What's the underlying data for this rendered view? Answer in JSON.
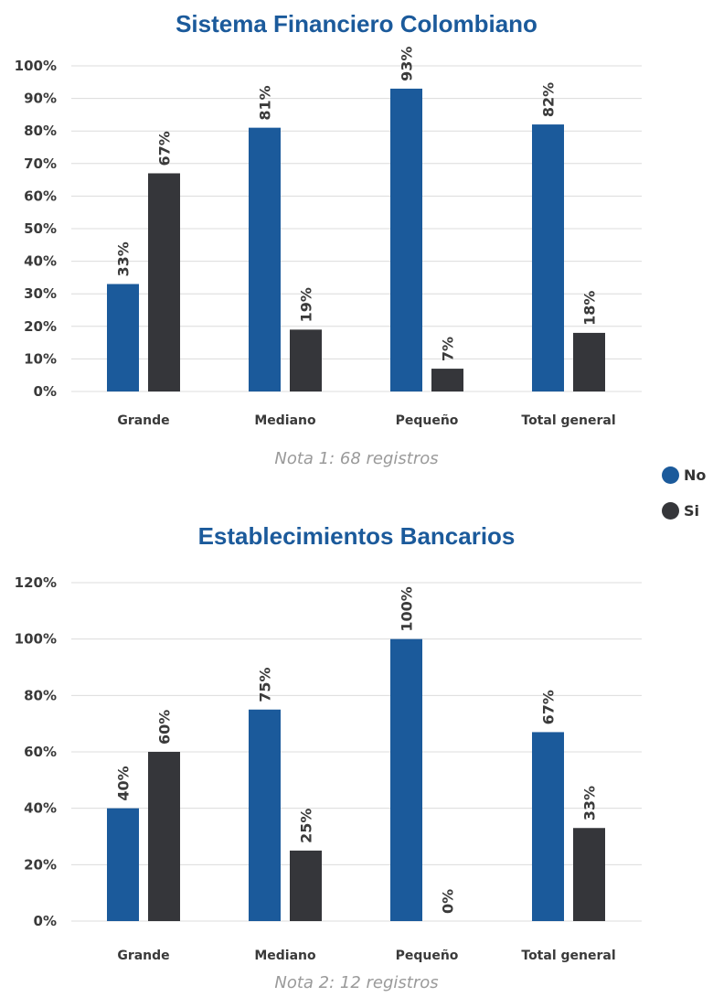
{
  "colors": {
    "series_no": "#1b5a9b",
    "series_si": "#35363a",
    "title": "#1b5a9b",
    "note": "#9a9a9a",
    "grid": "#dcdcdc"
  },
  "legend": {
    "placement": "right",
    "items": [
      {
        "label": "No",
        "color": "#1b5a9b"
      },
      {
        "label": "Si",
        "color": "#35363a"
      }
    ]
  },
  "chart_data": [
    {
      "type": "bar",
      "title": "Sistema Financiero Colombiano",
      "note": "Nota 1: 68 registros",
      "xlabel": "",
      "ylabel": "",
      "categories": [
        "Grande",
        "Mediano",
        "Pequeño",
        "Total general"
      ],
      "series": [
        {
          "name": "No",
          "values": [
            33,
            81,
            93,
            82
          ],
          "labels": [
            "33%",
            "81%",
            "93%",
            "82%"
          ]
        },
        {
          "name": "Si",
          "values": [
            67,
            19,
            7,
            18
          ],
          "labels": [
            "67%",
            "19%",
            "7%",
            "18%"
          ]
        }
      ],
      "yticks": [
        {
          "value": 0,
          "label": "0%"
        },
        {
          "value": 10,
          "label": "10%"
        },
        {
          "value": 20,
          "label": "20%"
        },
        {
          "value": 30,
          "label": "30%"
        },
        {
          "value": 40,
          "label": "40%"
        },
        {
          "value": 50,
          "label": "50%"
        },
        {
          "value": 60,
          "label": "60%"
        },
        {
          "value": 70,
          "label": "70%"
        },
        {
          "value": 80,
          "label": "80%"
        },
        {
          "value": 90,
          "label": "90%"
        },
        {
          "value": 100,
          "label": "100%"
        }
      ],
      "ylim": [
        0,
        100
      ],
      "grid": true
    },
    {
      "type": "bar",
      "title": "Establecimientos Bancarios",
      "note": "Nota 2: 12 registros",
      "xlabel": "",
      "ylabel": "",
      "categories": [
        "Grande",
        "Mediano",
        "Pequeño",
        "Total general"
      ],
      "series": [
        {
          "name": "No",
          "values": [
            40,
            75,
            100,
            67
          ],
          "labels": [
            "40%",
            "75%",
            "100%",
            "67%"
          ]
        },
        {
          "name": "Si",
          "values": [
            60,
            25,
            0,
            33
          ],
          "labels": [
            "60%",
            "25%",
            "0%",
            "33%"
          ]
        }
      ],
      "yticks": [
        {
          "value": 0,
          "label": "0%"
        },
        {
          "value": 20,
          "label": "20%"
        },
        {
          "value": 40,
          "label": "40%"
        },
        {
          "value": 60,
          "label": "60%"
        },
        {
          "value": 80,
          "label": "80%"
        },
        {
          "value": 100,
          "label": "100%"
        },
        {
          "value": 120,
          "label": "120%"
        }
      ],
      "ylim": [
        0,
        120
      ],
      "grid": true
    }
  ]
}
